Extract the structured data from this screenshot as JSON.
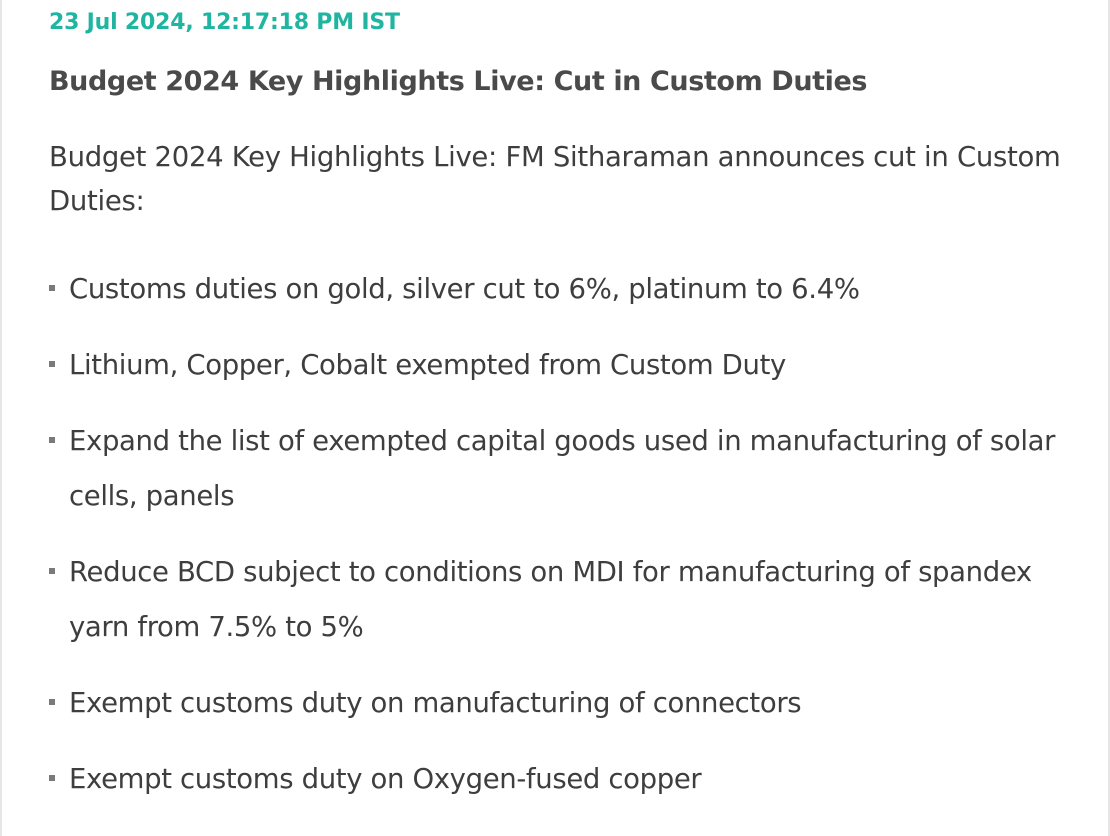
{
  "update": {
    "timestamp": "23 Jul 2024, 12:17:18 PM IST",
    "headline": "Budget 2024 Key Highlights Live: Cut in Custom Duties",
    "intro": "Budget 2024 Key Highlights Live: FM Sitharaman announces cut in Custom Duties:",
    "bullets": [
      "Customs duties on gold, silver cut to 6%, platinum to 6.4%",
      "Lithium, Copper, Cobalt exempted from Custom Duty",
      "Expand the list of exempted capital goods used in manufacturing of solar cells, panels",
      "Reduce BCD subject to conditions on MDI for manufacturing of spandex yarn from 7.5% to 5%",
      "Exempt customs duty on manufacturing of connectors",
      "Exempt customs duty on Oxygen-fused copper"
    ]
  },
  "colors": {
    "timestamp": "#1fb5a0",
    "headline": "#4a4a4a",
    "body_text": "#3e3e3e",
    "bullet_marker": "#7a7a7a"
  }
}
